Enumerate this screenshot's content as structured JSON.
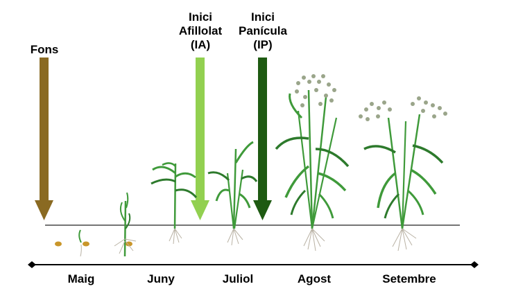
{
  "arrows": [
    {
      "id": "fons",
      "lines": [
        "Fons"
      ],
      "color": "#8a6a22"
    },
    {
      "id": "ia",
      "lines": [
        "Inici",
        "Afillolat",
        "(IA)"
      ],
      "color": "#92d050"
    },
    {
      "id": "ip",
      "lines": [
        "Inici",
        "Panícula",
        "(IP)"
      ],
      "color": "#1e5a12"
    }
  ],
  "months": [
    "Maig",
    "Juny",
    "Juliol",
    "Agost",
    "Setembre"
  ],
  "colors": {
    "ground": "#000000",
    "leaf": "#3f9a3a",
    "leaf_dark": "#2d7a2c",
    "root": "#b9b2a4",
    "seed": "#c9962a",
    "panicle": "#9aa58a"
  }
}
